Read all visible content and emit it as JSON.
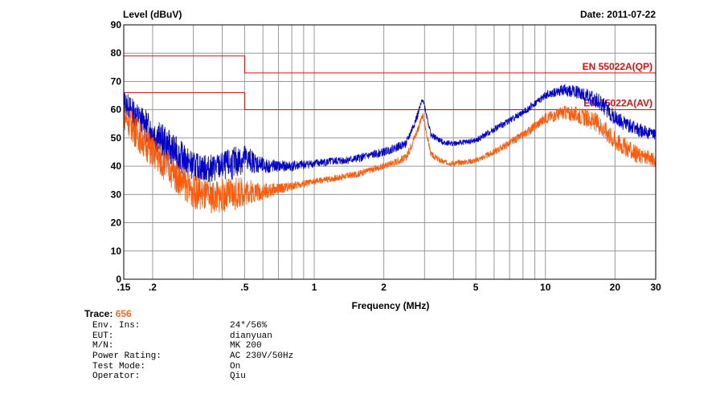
{
  "header": {
    "date_text": "Date: 2011-07-22"
  },
  "chart_data": {
    "type": "line",
    "ylabel": "Level (dBuV)",
    "xlabel": "Frequency (MHz)",
    "x_scale": "log",
    "xlim": [
      0.15,
      30
    ],
    "ylim": [
      0,
      90
    ],
    "x_ticks": [
      {
        "v": 0.15,
        "label": ".15"
      },
      {
        "v": 0.2,
        "label": ".2"
      },
      {
        "v": 0.5,
        "label": ".5"
      },
      {
        "v": 1,
        "label": "1"
      },
      {
        "v": 2,
        "label": "2"
      },
      {
        "v": 5,
        "label": "5"
      },
      {
        "v": 10,
        "label": "10"
      },
      {
        "v": 20,
        "label": "20"
      },
      {
        "v": 30,
        "label": "30"
      }
    ],
    "y_ticks": [
      0,
      10,
      20,
      30,
      40,
      50,
      60,
      70,
      80,
      90
    ],
    "grid": true,
    "limits": [
      {
        "name": "EN 55022A(QP)",
        "color": "#dd1111",
        "segments": [
          [
            0.15,
            0.5,
            79
          ],
          [
            0.5,
            30,
            73
          ]
        ]
      },
      {
        "name": "EN 55022A(AV)",
        "color": "#dd1111",
        "segments": [
          [
            0.15,
            0.5,
            66
          ],
          [
            0.5,
            30,
            60
          ]
        ]
      }
    ],
    "series": [
      {
        "color": "#0000cc",
        "x": [
          0.15,
          0.17,
          0.2,
          0.25,
          0.3,
          0.35,
          0.4,
          0.45,
          0.5,
          0.6,
          0.7,
          0.8,
          1,
          1.5,
          2,
          2.5,
          2.8,
          2.95,
          3.2,
          3.6,
          4,
          5,
          6,
          8,
          10,
          12,
          14,
          17,
          20,
          25,
          30
        ],
        "y": [
          63,
          58,
          52,
          45,
          40,
          39,
          40,
          41,
          43,
          40,
          40,
          40,
          41,
          42.5,
          45,
          48,
          58,
          64,
          51,
          48.5,
          48,
          49,
          53,
          59,
          65,
          67,
          66,
          63,
          57,
          53,
          51
        ],
        "noise": [
          4,
          5,
          6,
          6,
          5,
          5,
          5,
          6,
          5,
          3,
          2,
          2,
          1.5,
          1.5,
          1.5,
          1.5,
          1.5,
          1,
          1.2,
          1,
          1,
          1,
          1.2,
          1.2,
          1.5,
          2,
          2.5,
          3,
          3,
          2.5,
          2
        ]
      },
      {
        "color": "#ff5a0a",
        "x": [
          0.15,
          0.17,
          0.2,
          0.25,
          0.3,
          0.35,
          0.4,
          0.45,
          0.5,
          0.6,
          0.7,
          0.8,
          1,
          1.5,
          2,
          2.5,
          2.8,
          2.95,
          3.2,
          3.6,
          4,
          5,
          6,
          8,
          10,
          12,
          14,
          17,
          20,
          25,
          30
        ],
        "y": [
          58,
          52,
          45,
          37,
          31,
          29,
          29.5,
          30,
          31,
          31,
          32,
          33,
          34.5,
          37,
          40,
          43,
          53,
          58,
          44,
          41.5,
          41,
          42,
          45,
          51,
          57,
          59,
          58,
          55,
          49,
          44,
          42
        ],
        "noise": [
          5,
          6,
          6,
          6,
          6,
          6,
          6,
          6,
          5,
          3,
          2,
          1.5,
          1.2,
          1.2,
          1.2,
          1.5,
          1.5,
          1,
          1.2,
          1,
          1,
          1,
          1.2,
          1.5,
          2,
          2.5,
          3,
          3.5,
          3.5,
          3,
          2.5
        ]
      }
    ]
  },
  "trace": {
    "label": "Trace:",
    "value": "656"
  },
  "info": [
    {
      "label": "Env. Ins:",
      "value": "24*/56%"
    },
    {
      "label": "EUT:",
      "value": "dianyuan"
    },
    {
      "label": "M/N:",
      "value": "MK 200"
    },
    {
      "label": "Power Rating:",
      "value": "AC 230V/50Hz"
    },
    {
      "label": "Test Mode:",
      "value": "On"
    },
    {
      "label": "Operator:",
      "value": "Qiu"
    }
  ]
}
